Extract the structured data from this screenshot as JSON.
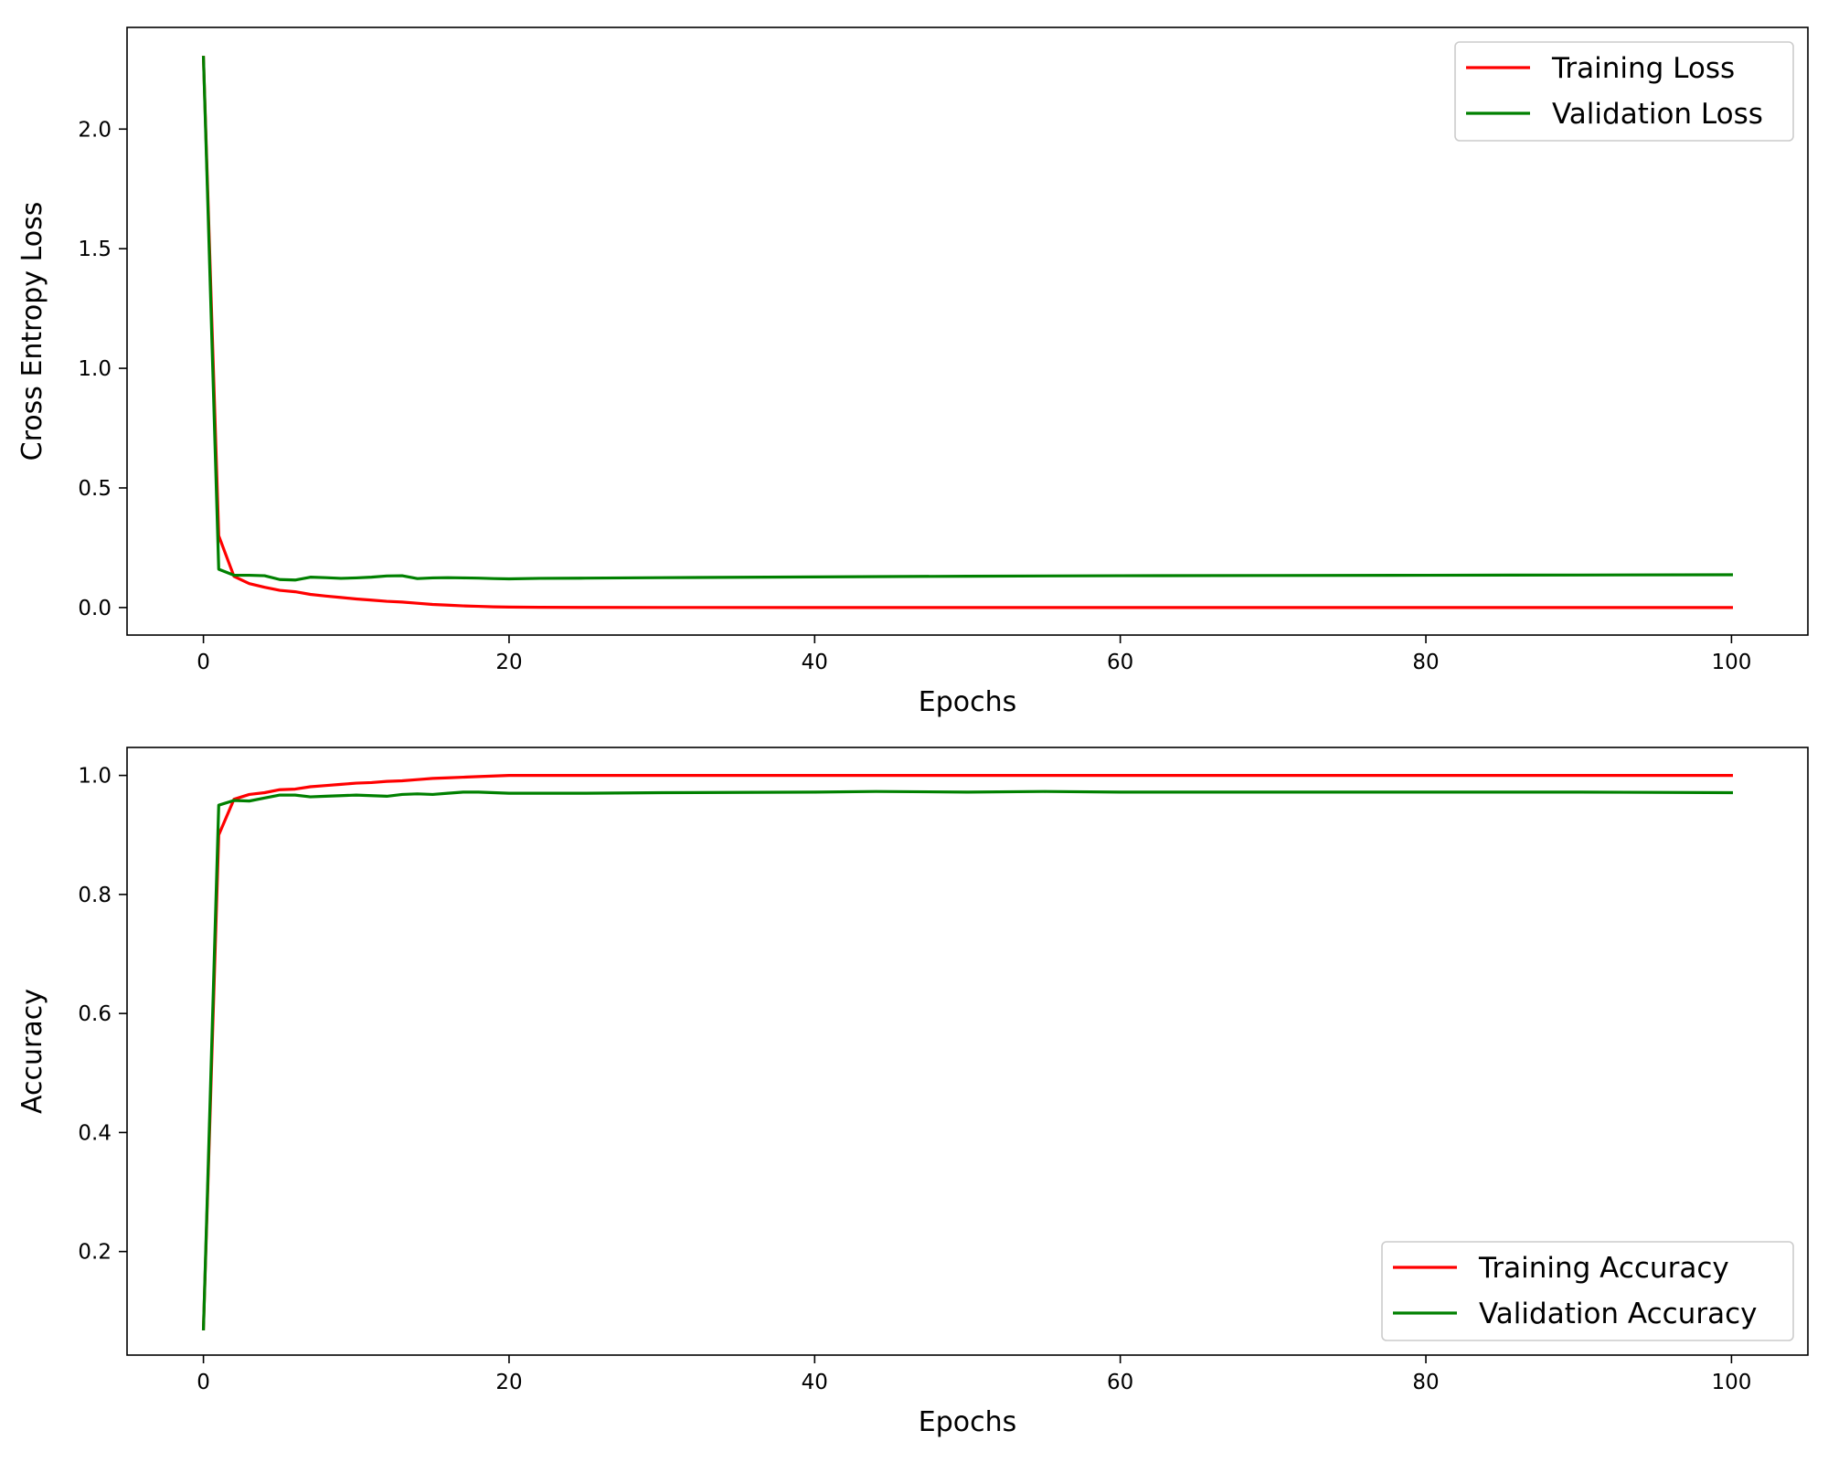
{
  "chart_data": [
    {
      "type": "line",
      "xlabel": "Epochs",
      "ylabel": "Cross Entropy Loss",
      "xlim": [
        -5,
        105
      ],
      "ylim": [
        -0.115,
        2.425
      ],
      "xticks": [
        0,
        20,
        40,
        60,
        80,
        100
      ],
      "xtick_labels": [
        "0",
        "20",
        "40",
        "60",
        "80",
        "100"
      ],
      "yticks": [
        0.0,
        0.5,
        1.0,
        1.5,
        2.0
      ],
      "ytick_labels": [
        "0.0",
        "0.5",
        "1.0",
        "1.5",
        "2.0"
      ],
      "grid": false,
      "legend": "top-right",
      "series": [
        {
          "name": "Training Loss",
          "color": "#ff0000",
          "x": [
            0,
            1,
            2,
            3,
            4,
            5,
            6,
            7,
            8,
            9,
            10,
            11,
            12,
            13,
            14,
            15,
            16,
            17,
            18,
            19,
            20,
            22,
            25,
            30,
            40,
            50,
            60,
            70,
            80,
            90,
            100
          ],
          "y": [
            2.3,
            0.3,
            0.13,
            0.1,
            0.085,
            0.072,
            0.066,
            0.055,
            0.048,
            0.042,
            0.036,
            0.031,
            0.026,
            0.023,
            0.018,
            0.013,
            0.01,
            0.007,
            0.005,
            0.003,
            0.002,
            0.001,
            0.0005,
            0.0003,
            0.0002,
            0.0001,
            0.0001,
            0.0001,
            0.0001,
            0.0,
            0.0
          ]
        },
        {
          "name": "Validation Loss",
          "color": "#008000",
          "x": [
            0,
            1,
            2,
            3,
            4,
            5,
            6,
            7,
            8,
            9,
            10,
            11,
            12,
            13,
            14,
            15,
            16,
            17,
            18,
            19,
            20,
            22,
            25,
            30,
            40,
            50,
            60,
            70,
            80,
            90,
            100
          ],
          "y": [
            2.3,
            0.16,
            0.135,
            0.135,
            0.133,
            0.117,
            0.115,
            0.127,
            0.125,
            0.122,
            0.124,
            0.127,
            0.132,
            0.133,
            0.121,
            0.124,
            0.125,
            0.124,
            0.123,
            0.121,
            0.12,
            0.122,
            0.123,
            0.125,
            0.128,
            0.131,
            0.133,
            0.134,
            0.135,
            0.136,
            0.137
          ]
        }
      ]
    },
    {
      "type": "line",
      "xlabel": "Epochs",
      "ylabel": "Accuracy",
      "xlim": [
        -5,
        105
      ],
      "ylim": [
        0.026,
        1.047
      ],
      "xticks": [
        0,
        20,
        40,
        60,
        80,
        100
      ],
      "xtick_labels": [
        "0",
        "20",
        "40",
        "60",
        "80",
        "100"
      ],
      "yticks": [
        0.2,
        0.4,
        0.6,
        0.8,
        1.0
      ],
      "ytick_labels": [
        "0.2",
        "0.4",
        "0.6",
        "0.8",
        "1.0"
      ],
      "grid": false,
      "legend": "bottom-right",
      "series": [
        {
          "name": "Training Accuracy",
          "color": "#ff0000",
          "x": [
            0,
            1,
            2,
            3,
            4,
            5,
            6,
            7,
            8,
            9,
            10,
            11,
            12,
            13,
            14,
            15,
            16,
            17,
            18,
            19,
            20,
            25,
            30,
            40,
            50,
            60,
            70,
            80,
            90,
            100
          ],
          "y": [
            0.07,
            0.9,
            0.96,
            0.968,
            0.971,
            0.976,
            0.977,
            0.981,
            0.983,
            0.985,
            0.987,
            0.988,
            0.99,
            0.991,
            0.993,
            0.995,
            0.996,
            0.997,
            0.998,
            0.999,
            1.0,
            1.0,
            1.0,
            1.0,
            1.0,
            1.0,
            1.0,
            1.0,
            1.0,
            1.0
          ]
        },
        {
          "name": "Validation Accuracy",
          "color": "#008000",
          "x": [
            0,
            1,
            2,
            3,
            4,
            5,
            6,
            7,
            8,
            9,
            10,
            11,
            12,
            13,
            14,
            15,
            16,
            17,
            18,
            19,
            20,
            25,
            30,
            40,
            44,
            50,
            55,
            60,
            70,
            80,
            90,
            100
          ],
          "y": [
            0.07,
            0.95,
            0.958,
            0.957,
            0.962,
            0.967,
            0.967,
            0.964,
            0.965,
            0.966,
            0.967,
            0.966,
            0.965,
            0.968,
            0.969,
            0.968,
            0.97,
            0.972,
            0.972,
            0.971,
            0.97,
            0.97,
            0.971,
            0.972,
            0.973,
            0.972,
            0.973,
            0.972,
            0.972,
            0.972,
            0.972,
            0.971
          ]
        }
      ]
    }
  ]
}
